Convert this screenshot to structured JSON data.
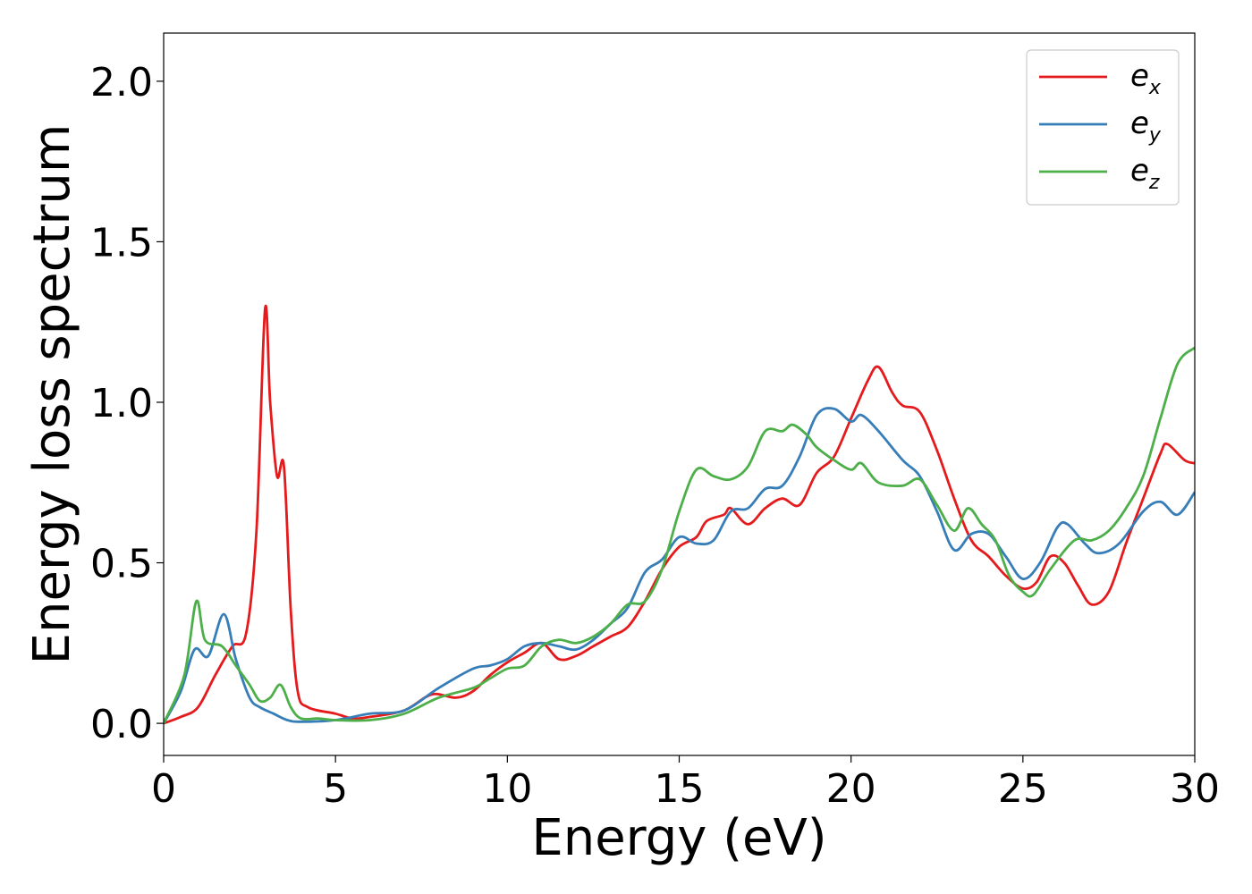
{
  "chart_data": {
    "type": "line",
    "title": "",
    "xlabel": "Energy (eV)",
    "ylabel": "Energy loss spectrum",
    "xlim": [
      0,
      30
    ],
    "ylim": [
      -0.1,
      2.15
    ],
    "xticks": [
      0,
      5,
      10,
      15,
      20,
      25,
      30
    ],
    "xtick_labels": [
      "0",
      "5",
      "10",
      "15",
      "20",
      "25",
      "30"
    ],
    "yticks": [
      0.0,
      0.5,
      1.0,
      1.5,
      2.0
    ],
    "ytick_labels": [
      "0.0",
      "0.5",
      "1.0",
      "1.5",
      "2.0"
    ],
    "grid": false,
    "legend_position": "top-right",
    "series": [
      {
        "name": "e_x",
        "label_base": "e",
        "label_sub": "x",
        "color": "#e41a1c",
        "points": [
          [
            0,
            0
          ],
          [
            0.5,
            0.02
          ],
          [
            1,
            0.05
          ],
          [
            1.5,
            0.15
          ],
          [
            2,
            0.24
          ],
          [
            2.4,
            0.28
          ],
          [
            2.7,
            0.6
          ],
          [
            2.95,
            1.29
          ],
          [
            3.1,
            1.0
          ],
          [
            3.3,
            0.77
          ],
          [
            3.5,
            0.8
          ],
          [
            3.7,
            0.35
          ],
          [
            3.9,
            0.1
          ],
          [
            4.2,
            0.05
          ],
          [
            5,
            0.03
          ],
          [
            5.5,
            0.015
          ],
          [
            6,
            0.02
          ],
          [
            7,
            0.04
          ],
          [
            7.8,
            0.09
          ],
          [
            8.5,
            0.08
          ],
          [
            9,
            0.1
          ],
          [
            9.5,
            0.15
          ],
          [
            10,
            0.19
          ],
          [
            10.5,
            0.22
          ],
          [
            11,
            0.25
          ],
          [
            11.5,
            0.2
          ],
          [
            12,
            0.21
          ],
          [
            12.5,
            0.24
          ],
          [
            13,
            0.27
          ],
          [
            13.5,
            0.3
          ],
          [
            14,
            0.38
          ],
          [
            14.5,
            0.48
          ],
          [
            15,
            0.55
          ],
          [
            15.5,
            0.58
          ],
          [
            15.8,
            0.63
          ],
          [
            16.3,
            0.65
          ],
          [
            16.5,
            0.67
          ],
          [
            17,
            0.62
          ],
          [
            17.5,
            0.67
          ],
          [
            18,
            0.7
          ],
          [
            18.5,
            0.68
          ],
          [
            19,
            0.78
          ],
          [
            19.5,
            0.83
          ],
          [
            20,
            0.95
          ],
          [
            20.5,
            1.07
          ],
          [
            20.8,
            1.11
          ],
          [
            21.2,
            1.03
          ],
          [
            21.5,
            0.99
          ],
          [
            22,
            0.97
          ],
          [
            22.5,
            0.85
          ],
          [
            23,
            0.7
          ],
          [
            23.5,
            0.57
          ],
          [
            24,
            0.52
          ],
          [
            24.5,
            0.46
          ],
          [
            25,
            0.42
          ],
          [
            25.4,
            0.44
          ],
          [
            25.8,
            0.52
          ],
          [
            26.2,
            0.5
          ],
          [
            26.6,
            0.43
          ],
          [
            27,
            0.37
          ],
          [
            27.5,
            0.41
          ],
          [
            28,
            0.56
          ],
          [
            28.5,
            0.7
          ],
          [
            29,
            0.84
          ],
          [
            29.2,
            0.87
          ],
          [
            29.7,
            0.82
          ],
          [
            30,
            0.81
          ]
        ]
      },
      {
        "name": "e_y",
        "label_base": "e",
        "label_sub": "y",
        "color": "#377eb8",
        "points": [
          [
            0,
            0
          ],
          [
            0.5,
            0.1
          ],
          [
            0.9,
            0.23
          ],
          [
            1.3,
            0.21
          ],
          [
            1.75,
            0.34
          ],
          [
            2.1,
            0.2
          ],
          [
            2.5,
            0.08
          ],
          [
            2.8,
            0.05
          ],
          [
            3.2,
            0.03
          ],
          [
            3.6,
            0.01
          ],
          [
            4,
            0.005
          ],
          [
            5,
            0.01
          ],
          [
            6,
            0.03
          ],
          [
            7,
            0.04
          ],
          [
            8,
            0.11
          ],
          [
            9,
            0.17
          ],
          [
            9.5,
            0.18
          ],
          [
            10,
            0.2
          ],
          [
            10.5,
            0.24
          ],
          [
            11,
            0.25
          ],
          [
            11.5,
            0.24
          ],
          [
            12,
            0.23
          ],
          [
            12.5,
            0.26
          ],
          [
            13,
            0.31
          ],
          [
            13.5,
            0.36
          ],
          [
            14,
            0.47
          ],
          [
            14.5,
            0.51
          ],
          [
            15,
            0.58
          ],
          [
            15.5,
            0.56
          ],
          [
            16,
            0.57
          ],
          [
            16.5,
            0.66
          ],
          [
            17,
            0.67
          ],
          [
            17.5,
            0.73
          ],
          [
            18,
            0.74
          ],
          [
            18.5,
            0.83
          ],
          [
            19,
            0.96
          ],
          [
            19.5,
            0.98
          ],
          [
            20,
            0.94
          ],
          [
            20.3,
            0.96
          ],
          [
            20.8,
            0.91
          ],
          [
            21.5,
            0.82
          ],
          [
            22,
            0.77
          ],
          [
            22.5,
            0.66
          ],
          [
            23,
            0.54
          ],
          [
            23.5,
            0.59
          ],
          [
            24,
            0.59
          ],
          [
            24.5,
            0.52
          ],
          [
            25,
            0.45
          ],
          [
            25.5,
            0.5
          ],
          [
            26,
            0.61
          ],
          [
            26.3,
            0.62
          ],
          [
            26.8,
            0.56
          ],
          [
            27.2,
            0.53
          ],
          [
            27.8,
            0.56
          ],
          [
            28.5,
            0.66
          ],
          [
            29,
            0.69
          ],
          [
            29.5,
            0.65
          ],
          [
            30,
            0.72
          ]
        ]
      },
      {
        "name": "e_z",
        "label_base": "e",
        "label_sub": "z",
        "color": "#4daf4a",
        "points": [
          [
            0,
            0
          ],
          [
            0.6,
            0.15
          ],
          [
            0.95,
            0.38
          ],
          [
            1.2,
            0.26
          ],
          [
            1.7,
            0.24
          ],
          [
            2.1,
            0.18
          ],
          [
            2.5,
            0.12
          ],
          [
            2.8,
            0.07
          ],
          [
            3.1,
            0.08
          ],
          [
            3.4,
            0.12
          ],
          [
            3.7,
            0.05
          ],
          [
            4,
            0.015
          ],
          [
            4.5,
            0.015
          ],
          [
            5,
            0.01
          ],
          [
            6,
            0.01
          ],
          [
            7,
            0.03
          ],
          [
            8,
            0.08
          ],
          [
            9,
            0.11
          ],
          [
            9.5,
            0.14
          ],
          [
            10,
            0.17
          ],
          [
            10.5,
            0.18
          ],
          [
            11,
            0.24
          ],
          [
            11.5,
            0.26
          ],
          [
            12,
            0.25
          ],
          [
            12.5,
            0.27
          ],
          [
            13,
            0.31
          ],
          [
            13.5,
            0.37
          ],
          [
            14,
            0.38
          ],
          [
            14.5,
            0.48
          ],
          [
            15,
            0.66
          ],
          [
            15.5,
            0.79
          ],
          [
            16,
            0.77
          ],
          [
            16.5,
            0.76
          ],
          [
            17,
            0.8
          ],
          [
            17.5,
            0.91
          ],
          [
            18,
            0.91
          ],
          [
            18.3,
            0.93
          ],
          [
            18.7,
            0.9
          ],
          [
            19,
            0.86
          ],
          [
            19.5,
            0.82
          ],
          [
            20,
            0.79
          ],
          [
            20.3,
            0.81
          ],
          [
            20.8,
            0.75
          ],
          [
            21.5,
            0.74
          ],
          [
            22,
            0.76
          ],
          [
            22.5,
            0.68
          ],
          [
            23,
            0.6
          ],
          [
            23.4,
            0.67
          ],
          [
            23.8,
            0.62
          ],
          [
            24.2,
            0.57
          ],
          [
            24.6,
            0.46
          ],
          [
            25,
            0.41
          ],
          [
            25.3,
            0.4
          ],
          [
            25.8,
            0.48
          ],
          [
            26.5,
            0.57
          ],
          [
            27,
            0.57
          ],
          [
            27.5,
            0.6
          ],
          [
            28,
            0.67
          ],
          [
            28.5,
            0.77
          ],
          [
            29,
            0.95
          ],
          [
            29.5,
            1.12
          ],
          [
            30,
            1.17
          ]
        ]
      }
    ]
  }
}
